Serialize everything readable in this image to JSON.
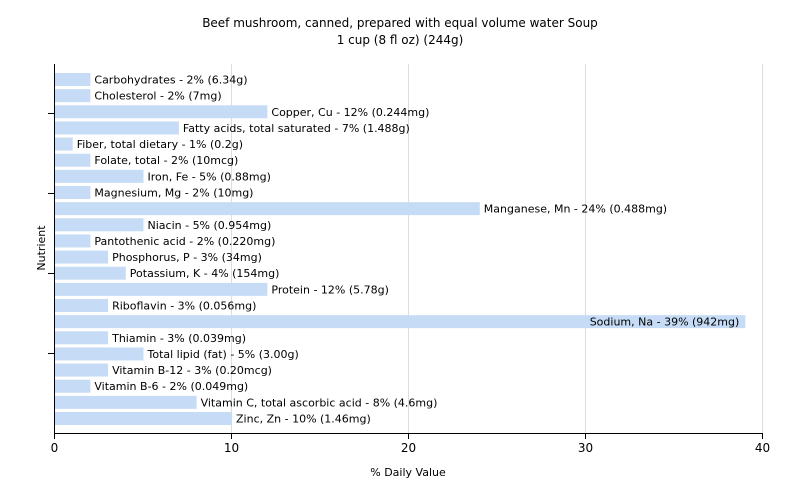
{
  "chart_data": {
    "type": "bar",
    "orientation": "horizontal",
    "title": "Beef mushroom, canned, prepared with equal volume water Soup",
    "subtitle": "1 cup (8 fl oz) (244g)",
    "xlabel": "% Daily Value",
    "ylabel": "Nutrient",
    "xlim": [
      0,
      40
    ],
    "xticks": [
      0,
      10,
      20,
      30,
      40
    ],
    "grid": true,
    "bar_color": "#c6dcf6",
    "categories": [
      "Carbohydrates",
      "Cholesterol",
      "Copper, Cu",
      "Fatty acids, total saturated",
      "Fiber, total dietary",
      "Folate, total",
      "Iron, Fe",
      "Magnesium, Mg",
      "Manganese, Mn",
      "Niacin",
      "Pantothenic acid",
      "Phosphorus, P",
      "Potassium, K",
      "Protein",
      "Riboflavin",
      "Sodium, Na",
      "Thiamin",
      "Total lipid (fat)",
      "Vitamin B-12",
      "Vitamin B-6",
      "Vitamin C, total ascorbic acid",
      "Zinc, Zn"
    ],
    "values": [
      2,
      2,
      12,
      7,
      1,
      2,
      5,
      2,
      24,
      5,
      2,
      3,
      4,
      12,
      3,
      39,
      3,
      5,
      3,
      2,
      8,
      10
    ],
    "labels": [
      "Carbohydrates - 2% (6.34g)",
      "Cholesterol - 2% (7mg)",
      "Copper, Cu - 12% (0.244mg)",
      "Fatty acids, total saturated - 7% (1.488g)",
      "Fiber, total dietary - 1% (0.2g)",
      "Folate, total - 2% (10mcg)",
      "Iron, Fe - 5% (0.88mg)",
      "Magnesium, Mg - 2% (10mg)",
      "Manganese, Mn - 24% (0.488mg)",
      "Niacin - 5% (0.954mg)",
      "Pantothenic acid - 2% (0.220mg)",
      "Phosphorus, P - 3% (34mg)",
      "Potassium, K - 4% (154mg)",
      "Protein - 12% (5.78g)",
      "Riboflavin - 3% (0.056mg)",
      "Sodium, Na - 39% (942mg)",
      "Thiamin - 3% (0.039mg)",
      "Total lipid (fat) - 5% (3.00g)",
      "Vitamin B-12 - 3% (0.20mcg)",
      "Vitamin B-6 - 2% (0.049mg)",
      "Vitamin C, total ascorbic acid - 8% (4.6mg)",
      "Zinc, Zn - 10% (1.46mg)"
    ]
  }
}
